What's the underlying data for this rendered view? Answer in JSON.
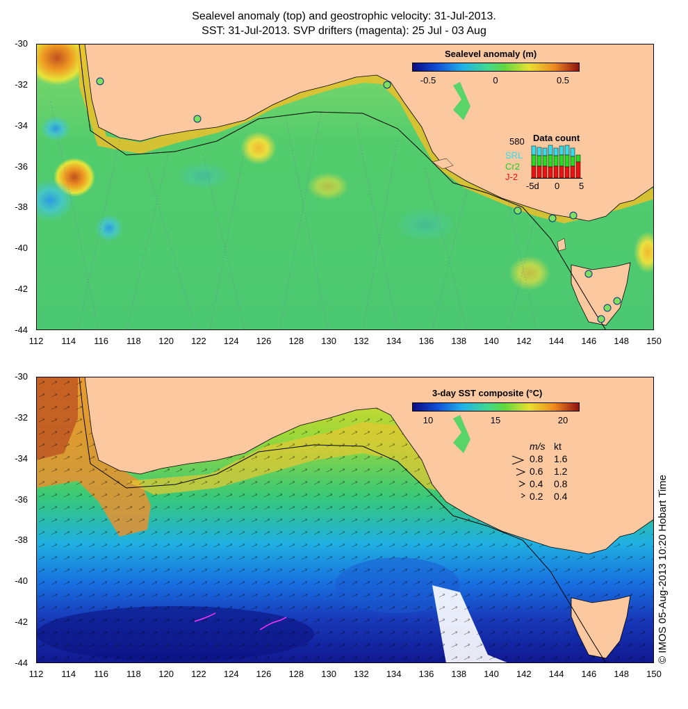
{
  "titles": {
    "line1": "Sealevel anomaly (top) and geostrophic velocity: 31-Jul-2013.",
    "line2": "SST: 31-Jul-2013. SVP drifters (magenta): 25 Jul - 03 Aug"
  },
  "axes": {
    "y_ticks": [
      "-30",
      "-32",
      "-34",
      "-36",
      "-38",
      "-40",
      "-42",
      "-44"
    ],
    "x_ticks": [
      "112",
      "114",
      "116",
      "118",
      "120",
      "122",
      "124",
      "126",
      "128",
      "130",
      "132",
      "134",
      "136",
      "138",
      "140",
      "142",
      "144",
      "146",
      "148",
      "150"
    ],
    "lon_range": [
      112,
      150
    ],
    "lat_range": [
      -44,
      -30
    ]
  },
  "top_panel": {
    "colorbar": {
      "title": "Sealevel anomaly (m)",
      "labels": [
        "-0.5",
        "0",
        "0.5"
      ],
      "range": [
        -0.65,
        0.65
      ]
    },
    "data_count": {
      "max_label": "580",
      "title": "Data count",
      "missions": [
        {
          "name": "SRL",
          "color": "#33ddee"
        },
        {
          "name": "Cr2",
          "color": "#22dd22"
        },
        {
          "name": "J-2",
          "color": "#ee1111"
        }
      ],
      "x_labels": [
        "-5d",
        "0",
        "5"
      ]
    }
  },
  "bottom_panel": {
    "colorbar": {
      "title": "3-day SST composite (°C)",
      "labels": [
        "10",
        "15",
        "20"
      ],
      "range": [
        8,
        22
      ]
    },
    "velocity_legend": {
      "header_ms": "m/s",
      "header_kt": "kt",
      "rows": [
        {
          "ms": "0.8",
          "kt": "1.6"
        },
        {
          "ms": "0.6",
          "kt": "1.2"
        },
        {
          "ms": "0.4",
          "kt": "0.8"
        },
        {
          "ms": "0.2",
          "kt": "0.4"
        }
      ]
    },
    "credit": "© IMOS 05-Aug-2013 10:20 Hobart Time"
  },
  "colors": {
    "land": "#fbc8a0",
    "ocean_neutral": "#58d468",
    "drifter": "#ff33ff",
    "tide_gauge": "#7fe060"
  }
}
